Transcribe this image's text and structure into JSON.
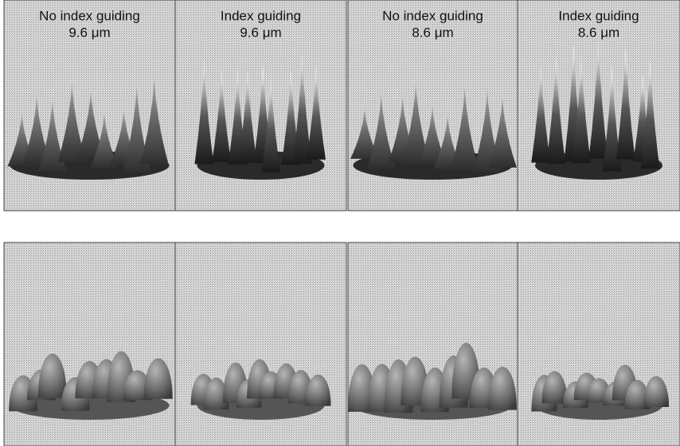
{
  "panels": [
    {
      "label": "No index guiding",
      "size": "9.6 μm"
    },
    {
      "label": "Index guiding",
      "size": "9.6 μm"
    },
    {
      "label": "No index guiding",
      "size": "8.6 μm"
    },
    {
      "label": "Index guiding",
      "size": "8.6 μm"
    }
  ]
}
